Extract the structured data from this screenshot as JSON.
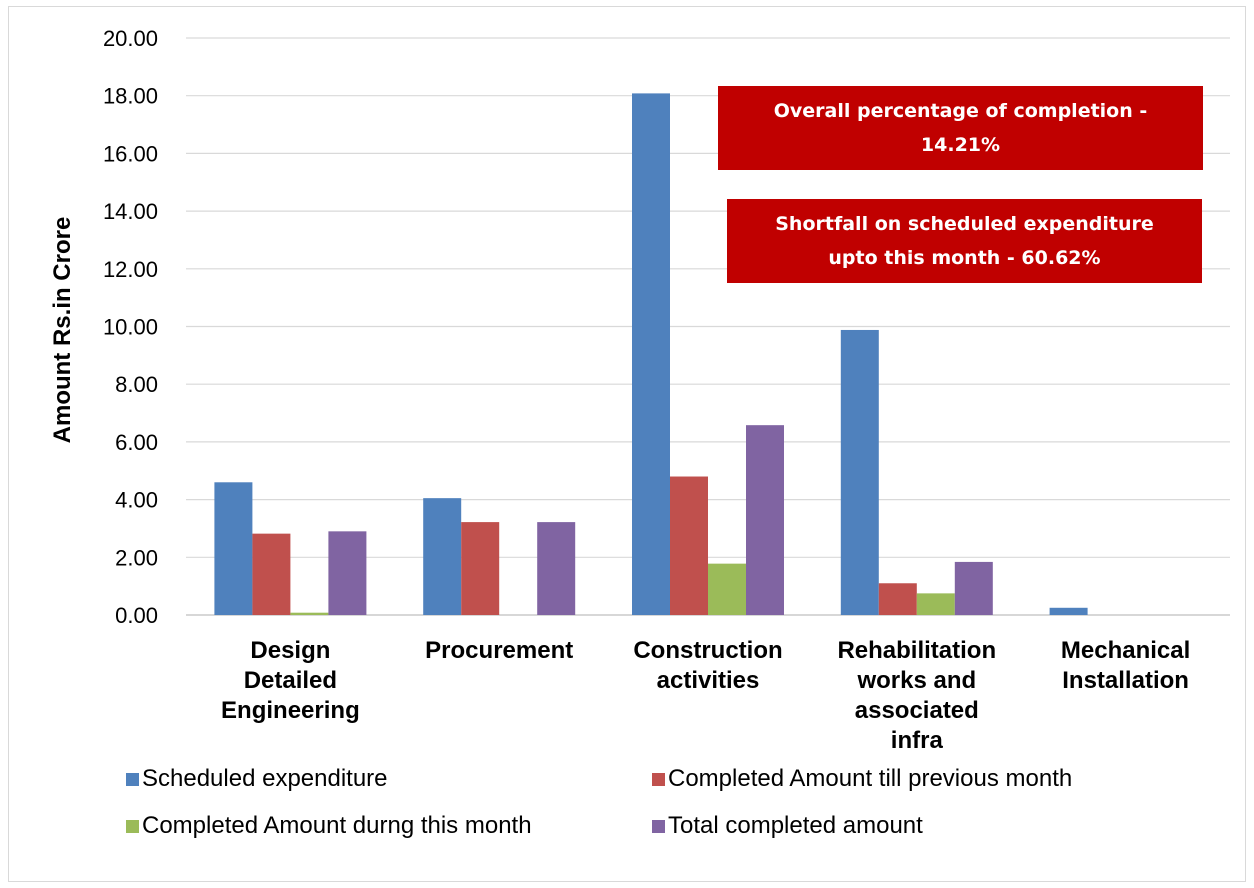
{
  "chart_data": {
    "type": "bar",
    "categories": [
      [
        "Design",
        "Detailed",
        "Engineering"
      ],
      [
        "Procurement"
      ],
      [
        "Construction",
        "activities"
      ],
      [
        "Rehabilitation",
        "works and",
        "associated",
        "infra"
      ],
      [
        "Mechanical",
        "Installation"
      ]
    ],
    "series": [
      {
        "name": "Scheduled expenditure",
        "color": "#4f81bd",
        "values": [
          4.6,
          4.05,
          18.08,
          9.88,
          0.25
        ]
      },
      {
        "name": "Completed Amount till previous month",
        "color": "#c0504d",
        "values": [
          2.82,
          3.22,
          4.8,
          1.1,
          0
        ]
      },
      {
        "name": "Completed Amount durng this month",
        "color": "#9bbb59",
        "values": [
          0.08,
          0,
          1.78,
          0.75,
          0
        ]
      },
      {
        "name": "Total completed amount",
        "color": "#8064a2",
        "values": [
          2.9,
          3.22,
          6.58,
          1.84,
          0
        ]
      }
    ],
    "title": "",
    "xlabel": "",
    "ylabel": "Amount Rs.in Crore",
    "ylim": [
      0,
      20
    ],
    "yticks": [
      "0.00",
      "2.00",
      "4.00",
      "6.00",
      "8.00",
      "10.00",
      "12.00",
      "14.00",
      "16.00",
      "18.00",
      "20.00"
    ],
    "grid": true,
    "legend_position": "bottom",
    "annotations": [
      {
        "lines": [
          "Overall percentage of completion -",
          "14.21%"
        ]
      },
      {
        "lines": [
          "Shortfall on scheduled expenditure",
          "upto this month  - 60.62%"
        ]
      }
    ]
  }
}
